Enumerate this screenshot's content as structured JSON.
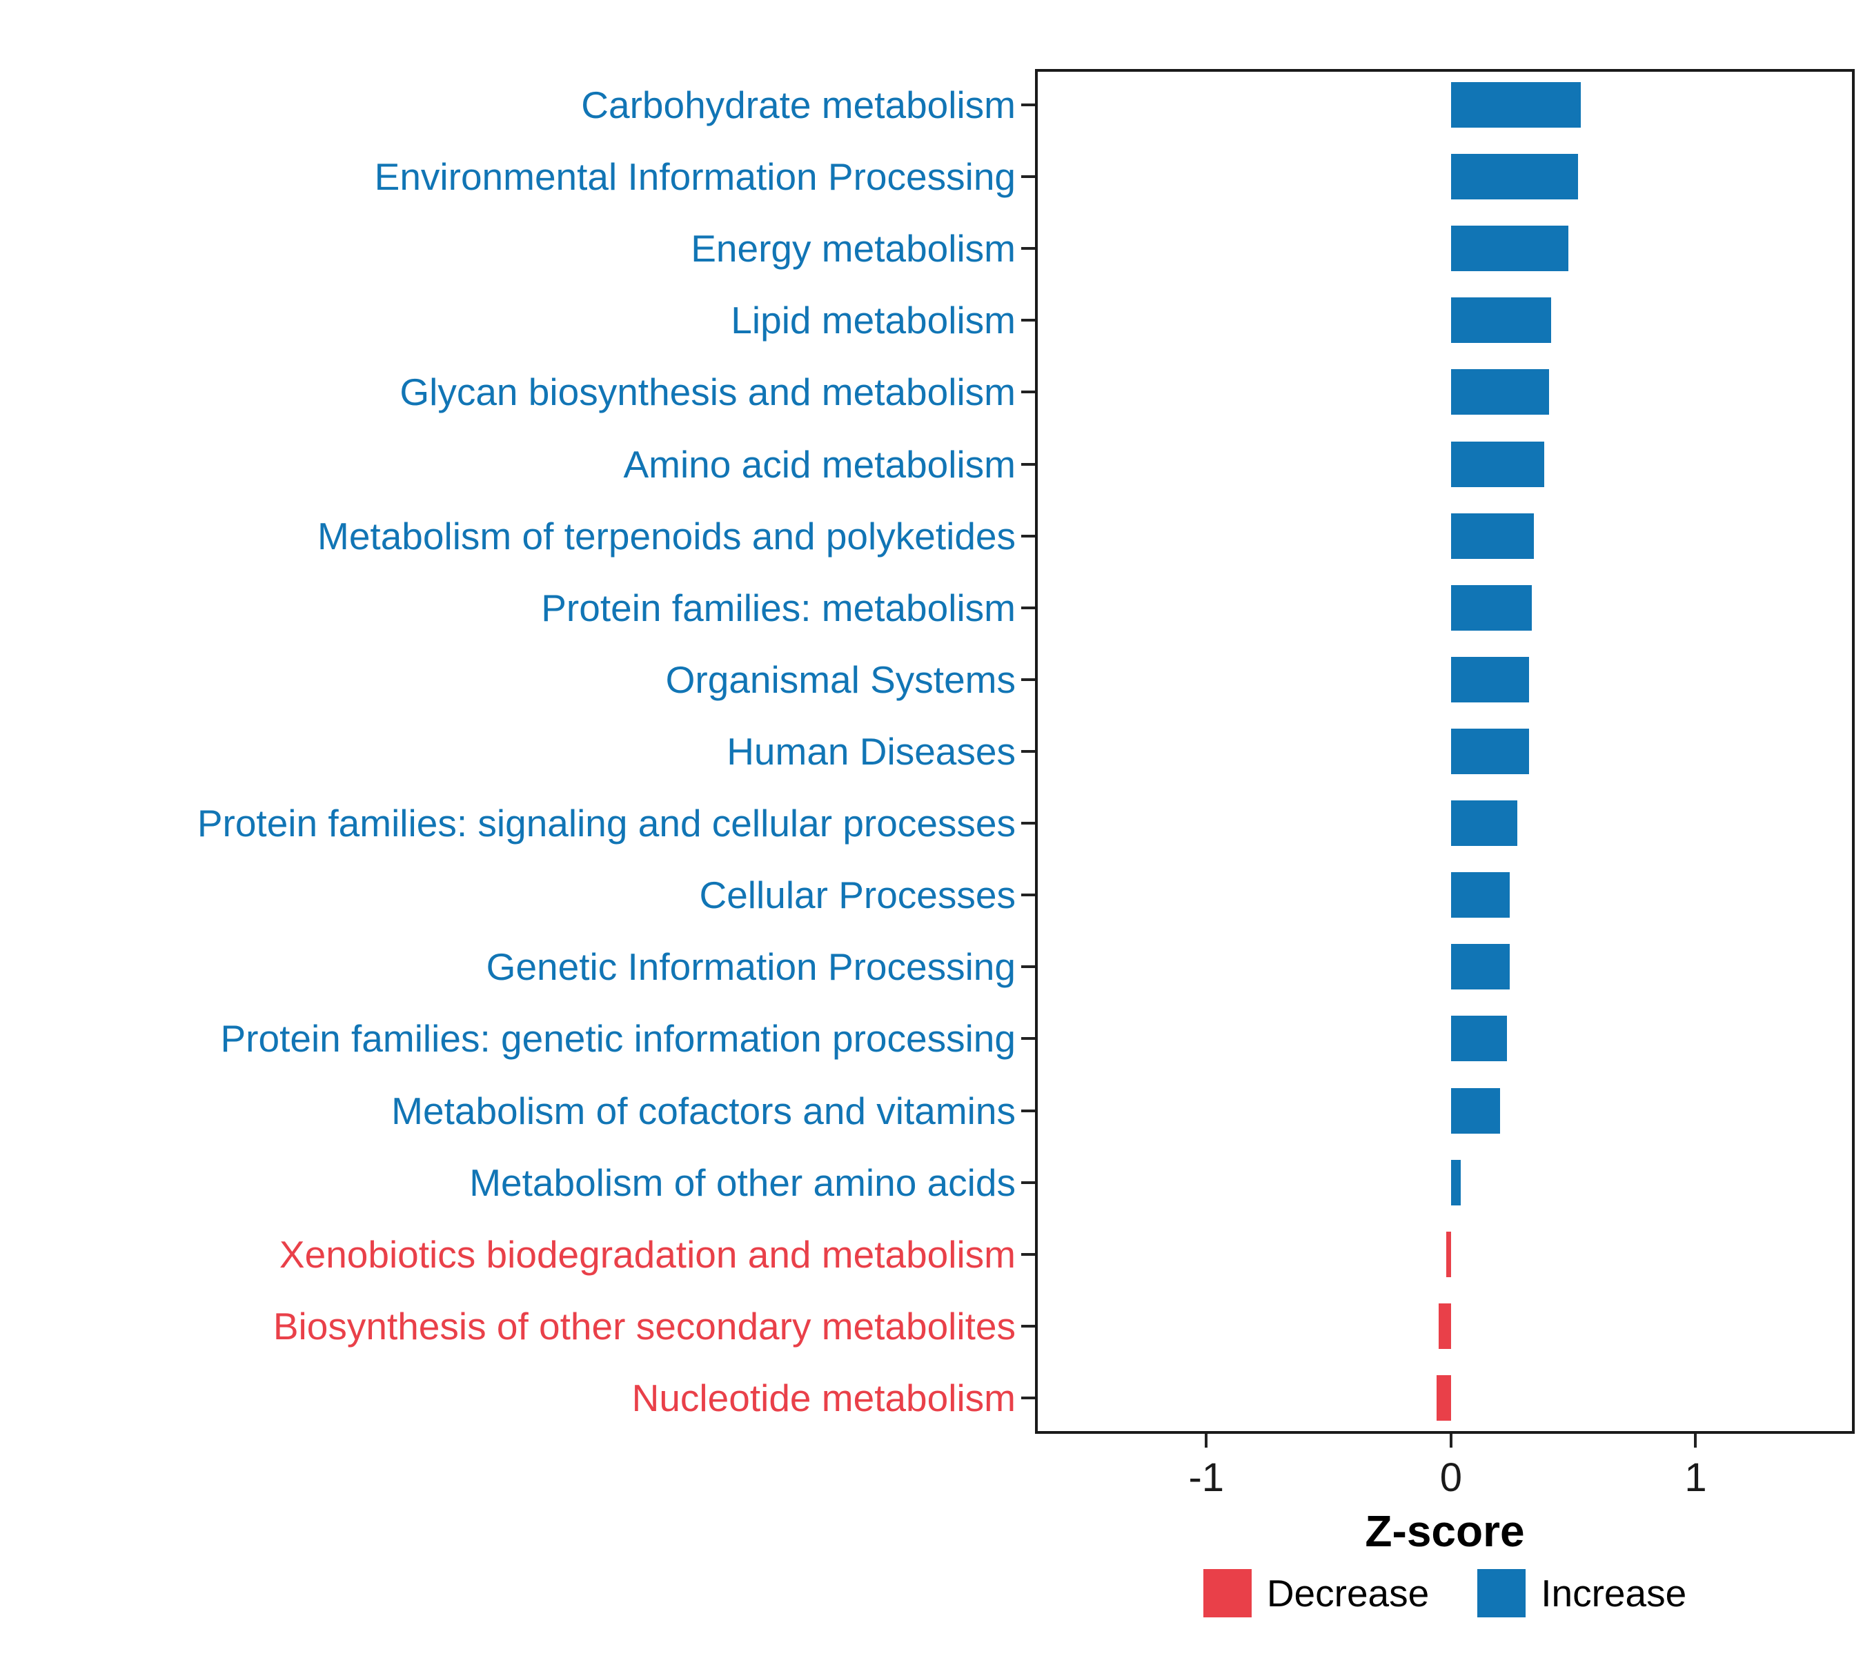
{
  "chart_data": {
    "type": "bar",
    "orientation": "horizontal",
    "title": "",
    "xlabel": "Z-score",
    "xlim": [
      -1.7,
      1.65
    ],
    "x_ticks": [
      -1,
      0,
      1
    ],
    "x_tick_labels": [
      "-1",
      "0",
      "1"
    ],
    "grid": false,
    "legend_position": "bottom",
    "categories": [
      "Carbohydrate metabolism",
      "Environmental Information Processing",
      "Energy metabolism",
      "Lipid metabolism",
      "Glycan biosynthesis and metabolism",
      "Amino acid metabolism",
      "Metabolism of terpenoids and polyketides",
      "Protein families: metabolism",
      "Organismal Systems",
      "Human Diseases",
      "Protein families: signaling and cellular processes",
      "Cellular Processes",
      "Genetic Information Processing",
      "Protein families: genetic information processing",
      "Metabolism of cofactors and vitamins",
      "Metabolism of other amino acids",
      "Xenobiotics biodegradation and metabolism",
      "Biosynthesis of other secondary metabolites",
      "Nucleotide metabolism"
    ],
    "values": [
      0.53,
      0.52,
      0.48,
      0.41,
      0.4,
      0.38,
      0.34,
      0.33,
      0.32,
      0.32,
      0.27,
      0.24,
      0.24,
      0.23,
      0.2,
      0.04,
      -0.02,
      -0.05,
      -0.06
    ],
    "directions": [
      "Increase",
      "Increase",
      "Increase",
      "Increase",
      "Increase",
      "Increase",
      "Increase",
      "Increase",
      "Increase",
      "Increase",
      "Increase",
      "Increase",
      "Increase",
      "Increase",
      "Increase",
      "Increase",
      "Decrease",
      "Decrease",
      "Decrease"
    ],
    "colors": {
      "Increase": "#1175B5",
      "Decrease": "#E94049"
    },
    "legend": [
      {
        "label": "Decrease",
        "color": "#E94049"
      },
      {
        "label": "Increase",
        "color": "#1175B5"
      }
    ]
  }
}
